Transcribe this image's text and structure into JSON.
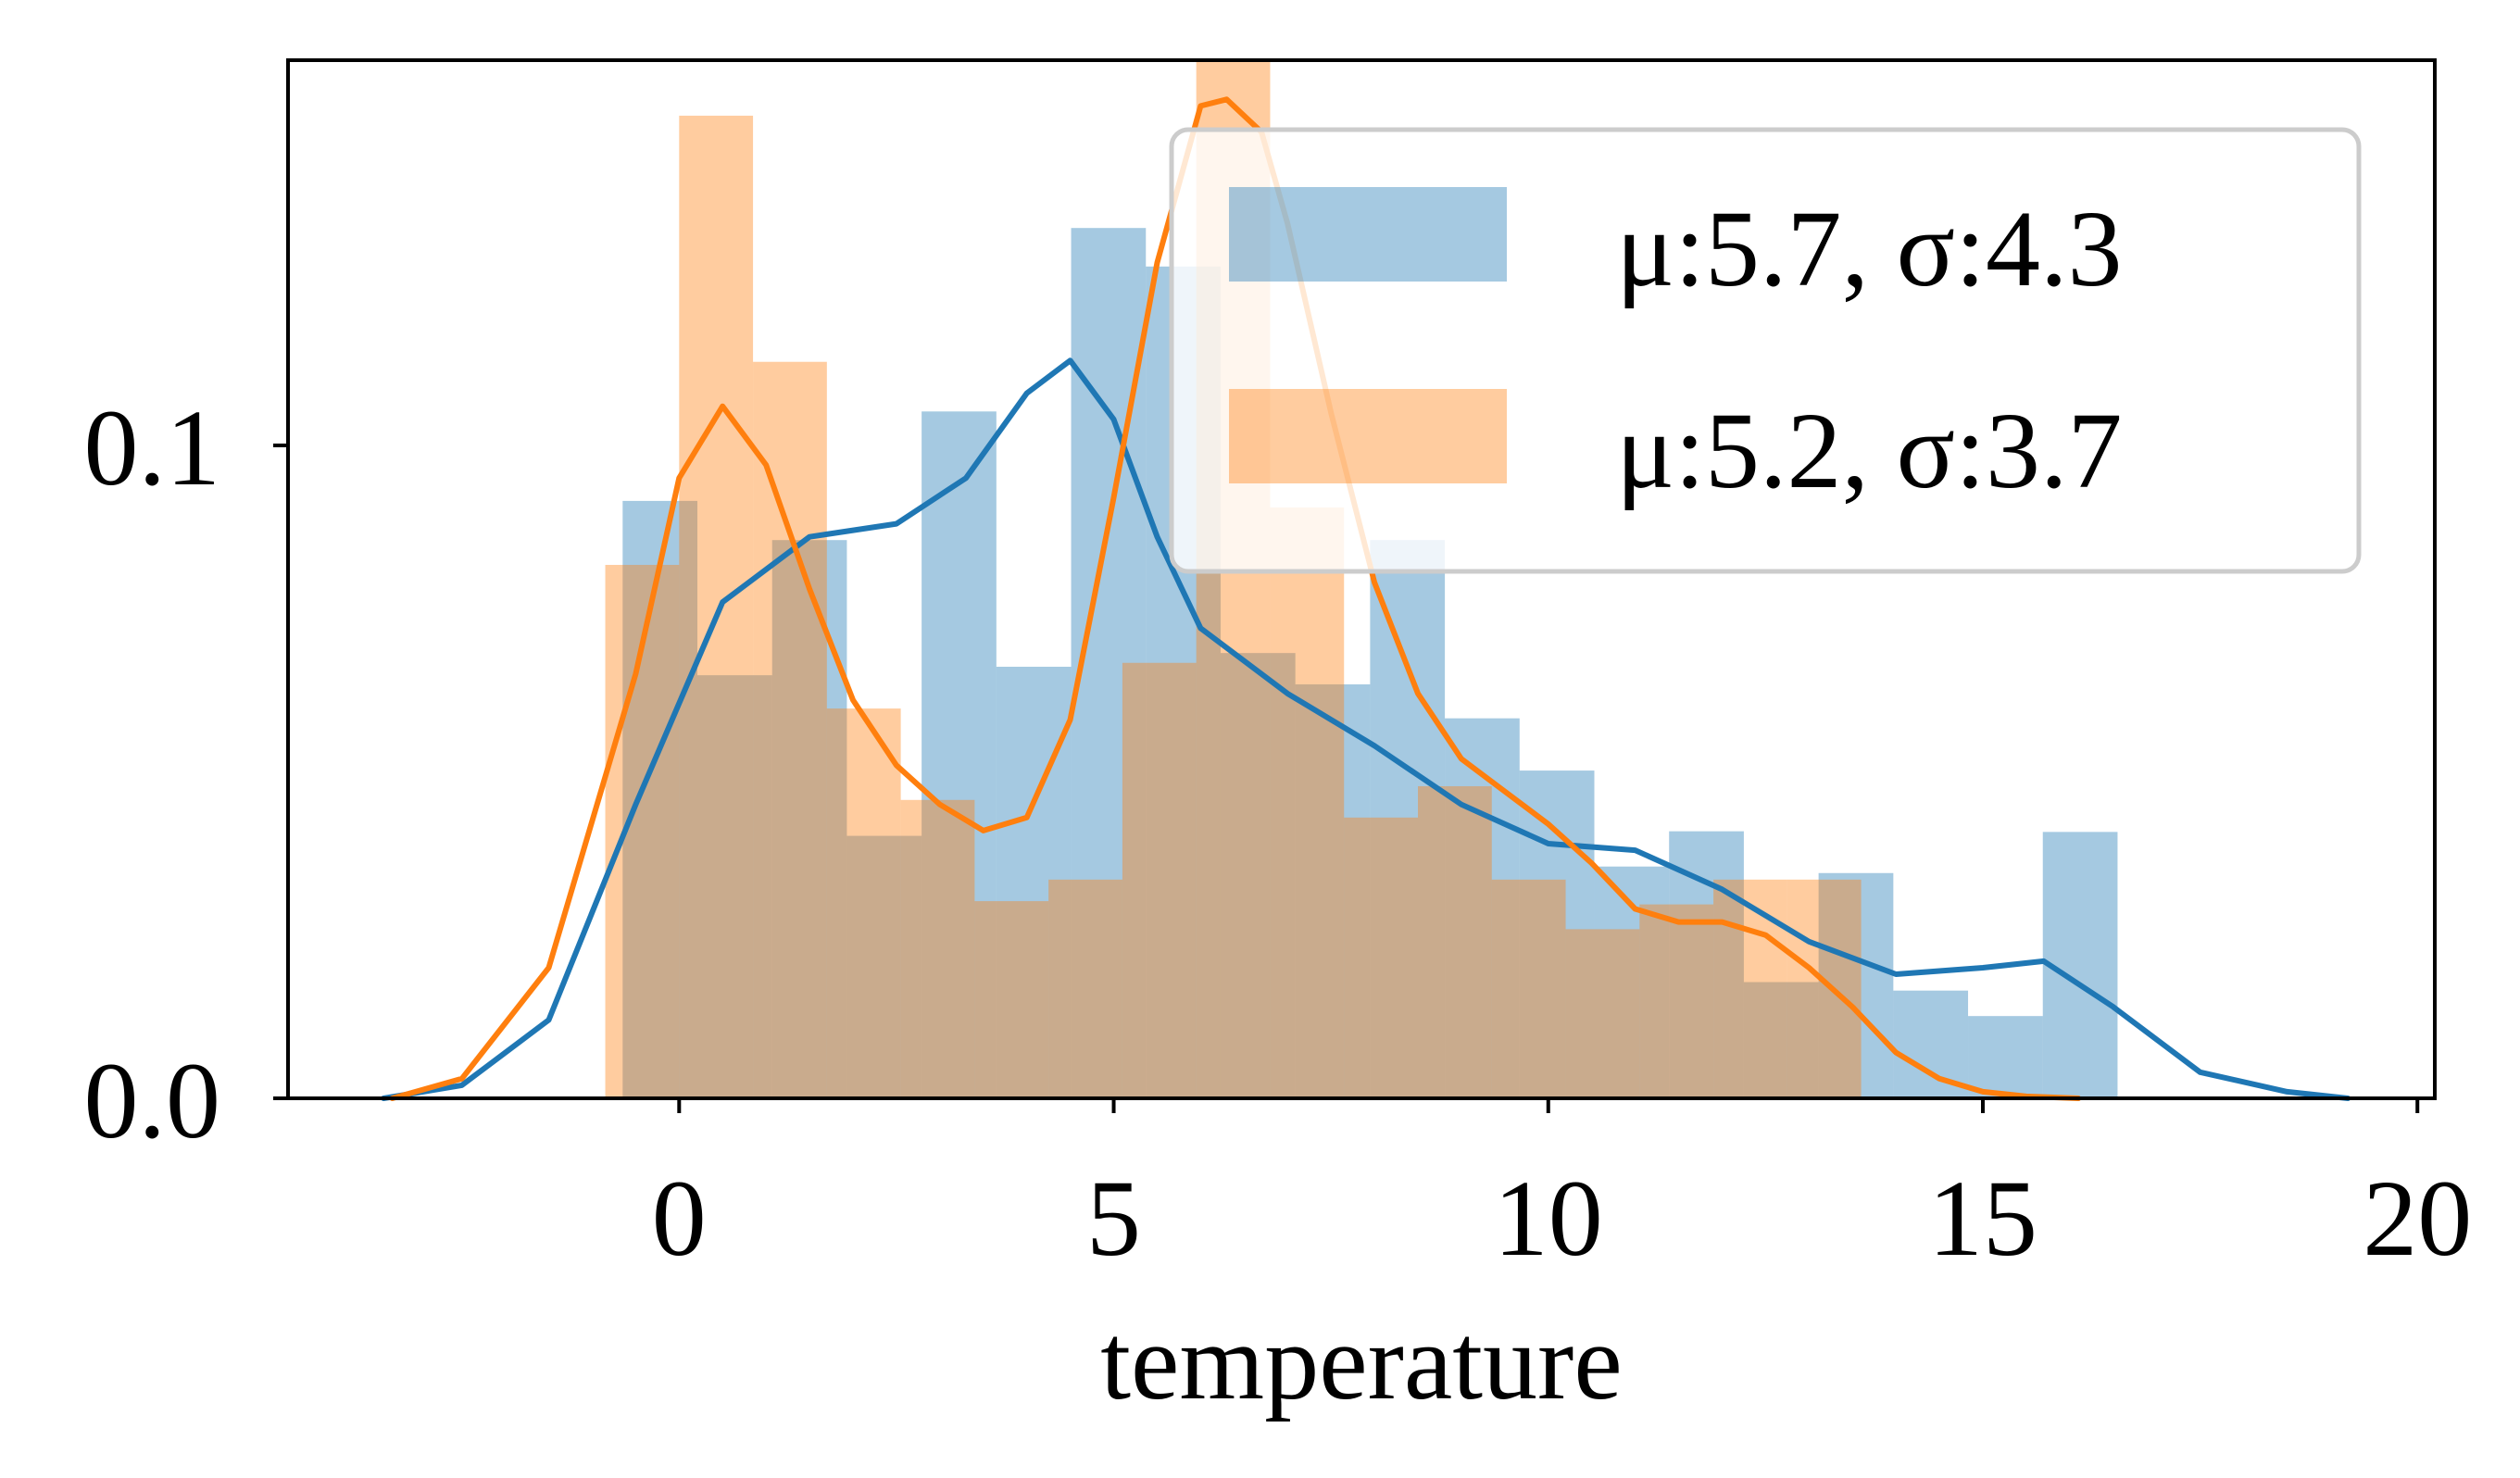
{
  "chart_data": {
    "type": "bar",
    "title": "",
    "xlabel": "temperature",
    "ylabel": "",
    "xlim": [
      -4.5,
      20.2
    ],
    "ylim": [
      0,
      0.159
    ],
    "xticks": [
      0,
      5,
      10,
      15,
      20
    ],
    "yticks": [
      0.0,
      0.1
    ],
    "xtick_labels": [
      "0",
      "5",
      "10",
      "15",
      "20"
    ],
    "ytick_labels": [
      "0.0",
      "0.1"
    ],
    "grid": false,
    "legend_position": "top-right",
    "colors": {
      "series1": "#1f77b4",
      "series2": "#ff7f0e"
    },
    "series": [
      {
        "name": "μ:5.7, σ:4.3",
        "bars": {
          "edges": [
            -0.65,
            0.21,
            1.07,
            1.93,
            2.79,
            3.65,
            4.51,
            5.37,
            6.23,
            7.09,
            7.95,
            8.81,
            9.67,
            10.53,
            11.39,
            12.25,
            13.11,
            13.97,
            14.83,
            15.69,
            16.55
          ],
          "values": [
            0.0915,
            0.0648,
            0.0855,
            0.0402,
            0.1052,
            0.0661,
            0.1333,
            0.1274,
            0.0682,
            0.0634,
            0.0855,
            0.0582,
            0.0502,
            0.0355,
            0.0409,
            0.0178,
            0.0345,
            0.0165,
            0.0126,
            0.0408
          ]
        },
        "kde": {
          "x": [
            -3.4,
            -2.5,
            -1.5,
            -0.5,
            0.5,
            1.5,
            2.5,
            3.3,
            4.0,
            4.5,
            5.0,
            5.5,
            6.0,
            7.0,
            8.0,
            9.0,
            10.0,
            11.0,
            12.0,
            13.0,
            14.0,
            15.0,
            15.7,
            16.5,
            17.5,
            18.5,
            19.2
          ],
          "y": [
            0.0,
            0.002,
            0.012,
            0.045,
            0.076,
            0.086,
            0.088,
            0.095,
            0.108,
            0.113,
            0.104,
            0.086,
            0.072,
            0.062,
            0.054,
            0.045,
            0.039,
            0.038,
            0.032,
            0.024,
            0.019,
            0.02,
            0.021,
            0.014,
            0.004,
            0.001,
            0.0
          ]
        }
      },
      {
        "name": "μ:5.2, σ:3.7",
        "bars": {
          "edges": [
            -0.85,
            0.0,
            0.85,
            1.7,
            2.55,
            3.4,
            4.25,
            5.1,
            5.95,
            6.8,
            7.65,
            8.5,
            9.35,
            10.2,
            11.05,
            11.9,
            12.75,
            13.6
          ],
          "values": [
            0.0817,
            0.1505,
            0.1128,
            0.0597,
            0.0457,
            0.0302,
            0.0335,
            0.0667,
            0.162,
            0.0905,
            0.043,
            0.0478,
            0.0335,
            0.0259,
            0.0297,
            0.0335,
            0.0335
          ]
        },
        "kde": {
          "x": [
            -3.3,
            -2.5,
            -1.5,
            -0.5,
            0.0,
            0.5,
            1.0,
            1.5,
            2.0,
            2.5,
            3.0,
            3.5,
            4.0,
            4.5,
            5.0,
            5.5,
            6.0,
            6.3,
            6.7,
            7.0,
            7.5,
            8.0,
            8.5,
            9.0,
            9.5,
            10.0,
            10.5,
            11.0,
            11.5,
            12.0,
            12.5,
            13.0,
            13.5,
            14.0,
            14.5,
            15.0,
            15.5,
            16.1
          ],
          "y": [
            0.0,
            0.003,
            0.02,
            0.065,
            0.095,
            0.106,
            0.097,
            0.078,
            0.061,
            0.051,
            0.045,
            0.041,
            0.043,
            0.058,
            0.092,
            0.128,
            0.152,
            0.153,
            0.148,
            0.134,
            0.105,
            0.079,
            0.062,
            0.052,
            0.047,
            0.042,
            0.036,
            0.029,
            0.027,
            0.027,
            0.025,
            0.02,
            0.014,
            0.007,
            0.003,
            0.001,
            0.0003,
            0.0
          ]
        }
      }
    ]
  }
}
